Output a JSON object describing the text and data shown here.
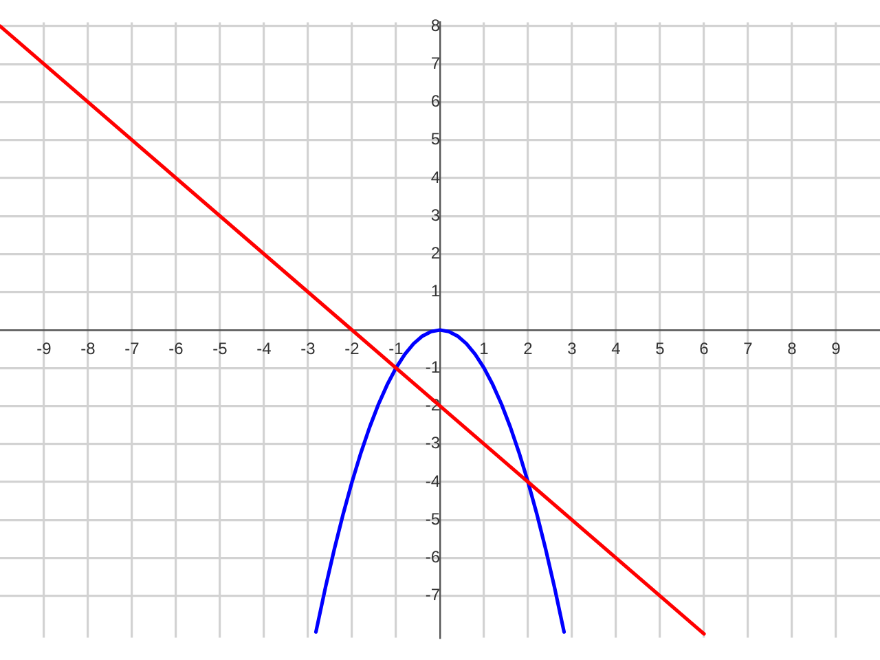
{
  "chart_data": {
    "type": "line",
    "series": [
      {
        "color": "#ff0000",
        "x": [
          -10,
          -6,
          -2,
          2,
          6
        ],
        "values": [
          8,
          4,
          0,
          -4,
          -8
        ]
      },
      {
        "color": "#0000ff",
        "x": [
          -2.82,
          -2.6,
          -2.4,
          -2.2,
          -2,
          -1.8,
          -1.6,
          -1.4,
          -1.2,
          -1,
          -0.8,
          -0.6,
          -0.4,
          -0.2,
          0,
          0.2,
          0.4,
          0.6,
          0.8,
          1,
          1.2,
          1.4,
          1.6,
          1.8,
          2,
          2.2,
          2.4,
          2.6,
          2.82
        ],
        "values": [
          -7.95,
          -6.76,
          -5.76,
          -4.84,
          -4,
          -3.24,
          -2.56,
          -1.96,
          -1.44,
          -1,
          -0.64,
          -0.36,
          -0.16,
          -0.04,
          0,
          -0.04,
          -0.16,
          -0.36,
          -0.64,
          -1,
          -1.44,
          -1.96,
          -2.56,
          -3.24,
          -4,
          -4.84,
          -5.76,
          -6.76,
          -7.95
        ]
      }
    ],
    "xlim": [
      -10,
      10
    ],
    "ylim": [
      -8.1,
      8.1
    ],
    "xticks": [
      -9,
      -8,
      -7,
      -6,
      -5,
      -4,
      -3,
      -2,
      -1,
      1,
      2,
      3,
      4,
      5,
      6,
      7,
      8,
      9
    ],
    "yticks": [
      -7,
      -6,
      -5,
      -4,
      -3,
      -2,
      -1,
      1,
      2,
      3,
      4,
      5,
      6,
      7,
      8
    ],
    "grid": true,
    "marker": "none",
    "legend": false
  }
}
